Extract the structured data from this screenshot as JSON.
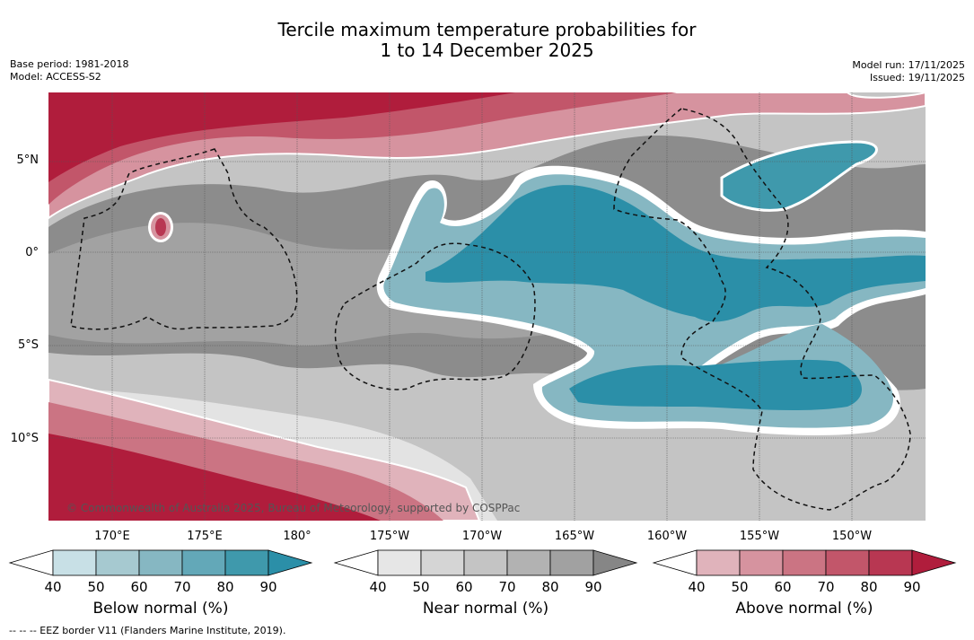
{
  "title": {
    "line1": "Tercile maximum temperature probabilities for",
    "line2": "1 to 14 December 2025"
  },
  "meta_left": {
    "base_period": "Base period: 1981-2018",
    "model": "Model: ACCESS-S2"
  },
  "meta_right": {
    "model_run": "Model run: 17/11/2025",
    "issued": "Issued: 19/11/2025"
  },
  "map": {
    "lat_labels": [
      "5°N",
      "0°",
      "5°S",
      "10°S"
    ],
    "lon_labels": [
      "170°E",
      "175°E",
      "180°",
      "175°W",
      "170°W",
      "165°W",
      "160°W",
      "155°W",
      "150°W"
    ],
    "copyright": "© Commonwealth of Australia 2025, Bureau of Meteorology, supported by COSPPac"
  },
  "colorbars": [
    {
      "title": "Below normal (%)",
      "ticks": [
        "40",
        "50",
        "60",
        "70",
        "80",
        "90"
      ],
      "colors": [
        "#c8e0e6",
        "#a6c9d0",
        "#86b7c2",
        "#63a8b8",
        "#3f99ac",
        "#2b8fa8"
      ]
    },
    {
      "title": "Near normal (%)",
      "ticks": [
        "40",
        "50",
        "60",
        "70",
        "80",
        "90"
      ],
      "colors": [
        "#e6e6e6",
        "#d5d5d5",
        "#c4c4c4",
        "#b2b2b2",
        "#a1a1a1",
        "#868686"
      ]
    },
    {
      "title": "Above normal (%)",
      "ticks": [
        "40",
        "50",
        "60",
        "70",
        "80",
        "90"
      ],
      "colors": [
        "#e0b3bb",
        "#d6939f",
        "#cb7483",
        "#c2566a",
        "#b83752",
        "#b01d3c"
      ]
    }
  ],
  "footer": "--  --  -- EEZ border V11 (Flanders Marine Institute, 2019).",
  "colors": {
    "above_dark": "#b01d3c",
    "below_dark": "#2b8fa8",
    "near_dark": "#868686"
  }
}
